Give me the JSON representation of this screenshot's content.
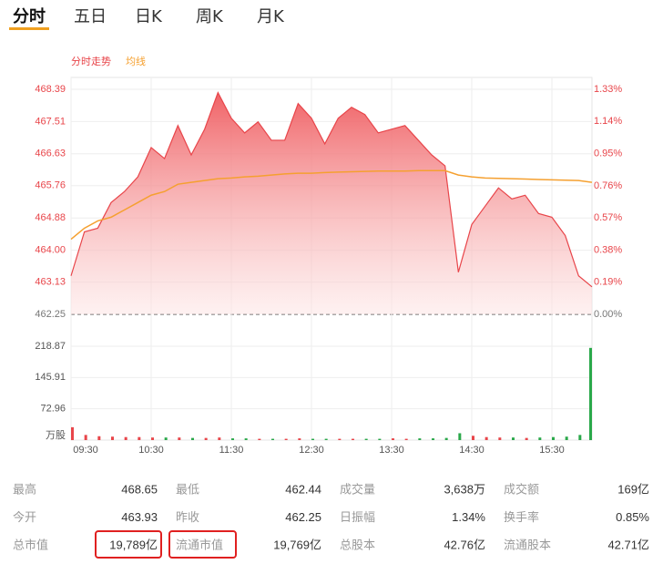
{
  "tabs": [
    "分时",
    "五日",
    "日K",
    "周K",
    "月K"
  ],
  "chart_data": [
    {
      "type": "line",
      "x": [
        "09:30",
        "09:40",
        "09:50",
        "10:00",
        "10:10",
        "10:20",
        "10:30",
        "10:40",
        "10:50",
        "11:00",
        "11:10",
        "11:20",
        "11:30",
        "11:40",
        "11:50",
        "12:00",
        "12:10",
        "12:20",
        "12:30",
        "12:40",
        "12:50",
        "13:00",
        "13:10",
        "13:20",
        "13:30",
        "13:40",
        "13:50",
        "14:00",
        "14:10",
        "14:20",
        "14:30",
        "14:40",
        "14:50",
        "15:00",
        "15:10",
        "15:20",
        "15:30",
        "15:40",
        "15:50",
        "16:00"
      ],
      "series": [
        {
          "name": "分时走势",
          "color": "#e8454a",
          "values": [
            463.3,
            464.5,
            464.6,
            465.3,
            465.6,
            466.0,
            466.8,
            466.5,
            467.4,
            466.6,
            467.3,
            468.3,
            467.6,
            467.2,
            467.5,
            467.0,
            467.0,
            468.0,
            467.6,
            466.9,
            467.6,
            467.9,
            467.7,
            467.2,
            467.3,
            467.4,
            467.0,
            466.6,
            466.3,
            463.4,
            464.7,
            465.2,
            465.7,
            465.4,
            465.5,
            465.0,
            464.9,
            464.4,
            463.3,
            463.0
          ]
        },
        {
          "name": "均线",
          "color": "#f5a030",
          "values": [
            464.3,
            464.6,
            464.8,
            464.9,
            465.1,
            465.3,
            465.5,
            465.6,
            465.8,
            465.85,
            465.9,
            465.95,
            465.97,
            466.0,
            466.02,
            466.05,
            466.08,
            466.1,
            466.1,
            466.12,
            466.13,
            466.14,
            466.15,
            466.16,
            466.16,
            466.16,
            466.17,
            466.17,
            466.17,
            466.05,
            466.0,
            465.97,
            465.96,
            465.95,
            465.94,
            465.93,
            465.92,
            465.91,
            465.9,
            465.85
          ]
        }
      ],
      "ylim": [
        462.25,
        468.39
      ],
      "yticks": [
        468.39,
        467.51,
        466.63,
        465.76,
        464.88,
        {
          "value": 464,
          "label": "464.00"
        },
        463.13,
        462.25
      ],
      "y2lim": [
        0,
        1.33
      ],
      "y2ticks": [
        {
          "value": 1.33,
          "label": "1.33%"
        },
        {
          "value": 1.14,
          "label": "1.14%"
        },
        {
          "value": 0.95,
          "label": "0.95%"
        },
        {
          "value": 0.76,
          "label": "0.76%"
        },
        {
          "value": 0.57,
          "label": "0.57%"
        },
        {
          "value": 0.38,
          "label": "0.38%"
        },
        {
          "value": 0.19,
          "label": "0.19%"
        },
        {
          "value": 0,
          "label": "0.00%"
        }
      ],
      "grid": true
    },
    {
      "type": "bar",
      "x": [
        "09:30",
        "09:40",
        "09:50",
        "10:00",
        "10:10",
        "10:20",
        "10:30",
        "10:40",
        "10:50",
        "11:00",
        "11:10",
        "11:20",
        "11:30",
        "11:40",
        "11:50",
        "12:00",
        "12:10",
        "12:20",
        "12:30",
        "12:40",
        "12:50",
        "13:00",
        "13:10",
        "13:20",
        "13:30",
        "13:40",
        "13:50",
        "14:00",
        "14:10",
        "14:20",
        "14:30",
        "14:40",
        "14:50",
        "15:00",
        "15:10",
        "15:20",
        "15:30",
        "15:40",
        "15:50",
        "16:00"
      ],
      "values": [
        30,
        12,
        9,
        8,
        7,
        7,
        6,
        6,
        6,
        5,
        5,
        6,
        4,
        4,
        3,
        3,
        3,
        4,
        3,
        3,
        3,
        3,
        3,
        3,
        4,
        3,
        4,
        4,
        5,
        16,
        10,
        7,
        6,
        6,
        5,
        6,
        7,
        8,
        12,
        215
      ],
      "up_color": "#e8454a",
      "down_color": "#2aa84a",
      "ylim": [
        0,
        218.87
      ],
      "yticks": [
        218.87,
        145.91,
        72.96,
        {
          "value": 0,
          "label": "万股"
        }
      ],
      "xlim": [
        "09:30",
        "16:00"
      ],
      "xticks": [
        "09:30",
        "10:30",
        "11:30",
        "12:30",
        "13:30",
        "14:30",
        "15:30"
      ],
      "grid": true
    }
  ],
  "stats": {
    "rows": [
      [
        "最高",
        "468.65",
        "最低",
        "462.44",
        "成交量",
        "3,638万",
        "成交额",
        "169亿"
      ],
      [
        "今开",
        "463.93",
        "昨收",
        "462.25",
        "日振幅",
        "1.34%",
        "换手率",
        "0.85%"
      ],
      [
        "总市值",
        "19,789亿",
        "流通市值",
        "19,769亿",
        "总股本",
        "42.76亿",
        "流通股本",
        "42.71亿"
      ]
    ]
  }
}
